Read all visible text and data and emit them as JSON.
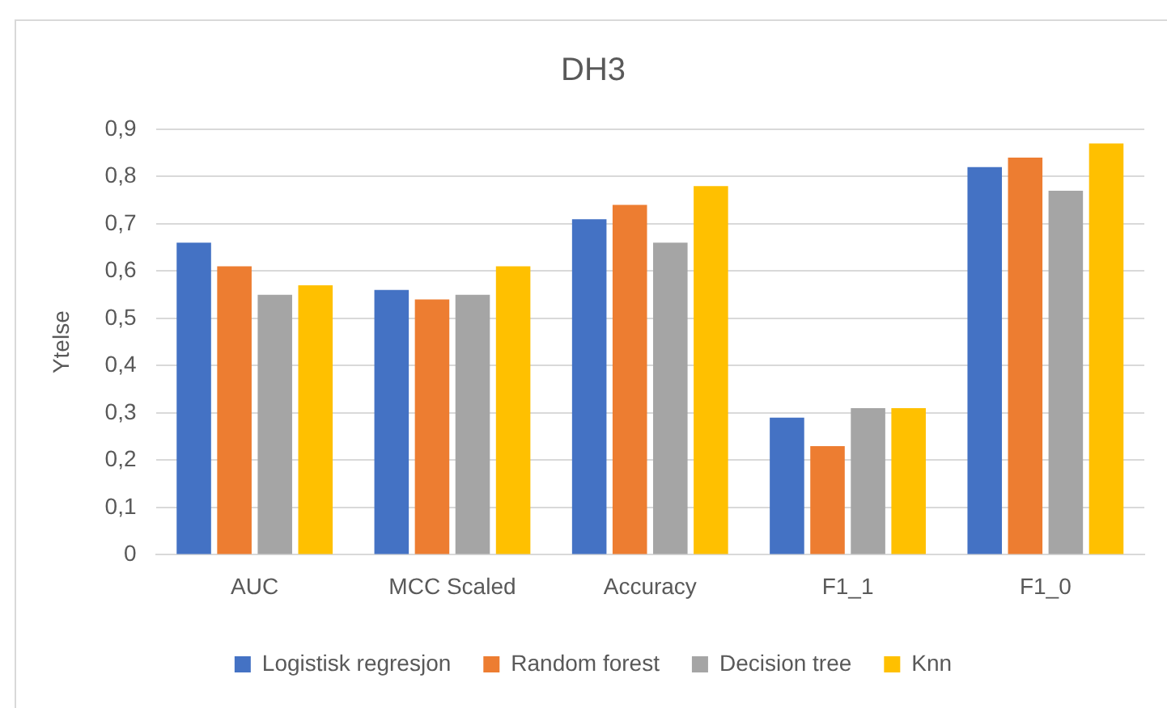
{
  "chart_data": {
    "type": "bar",
    "title": "DH3",
    "ylabel": "Ytelse",
    "categories": [
      "AUC",
      "MCC Scaled",
      "Accuracy",
      "F1_1",
      "F1_0"
    ],
    "series": [
      {
        "name": "Logistisk regresjon",
        "color": "#4472c4",
        "values": [
          0.66,
          0.56,
          0.71,
          0.29,
          0.82
        ]
      },
      {
        "name": "Random forest",
        "color": "#ed7d31",
        "values": [
          0.61,
          0.54,
          0.74,
          0.23,
          0.84
        ]
      },
      {
        "name": "Decision tree",
        "color": "#a5a5a5",
        "values": [
          0.55,
          0.55,
          0.66,
          0.31,
          0.77
        ]
      },
      {
        "name": "Knn",
        "color": "#ffc000",
        "values": [
          0.57,
          0.61,
          0.78,
          0.31,
          0.87
        ]
      }
    ],
    "ylim": [
      0,
      0.9
    ],
    "yticks": [
      0,
      {
        "value": 0.1,
        "label": "0,1"
      },
      {
        "value": 0.2,
        "label": "0,2"
      },
      {
        "value": 0.3,
        "label": "0,3"
      },
      {
        "value": 0.4,
        "label": "0,4"
      },
      {
        "value": 0.5,
        "label": "0,5"
      },
      {
        "value": 0.6,
        "label": "0,6"
      },
      {
        "value": 0.7,
        "label": "0,7"
      },
      {
        "value": 0.8,
        "label": "0,8"
      },
      {
        "value": 0.9,
        "label": "0,9"
      }
    ],
    "grid": "y",
    "legend": "bottom"
  }
}
